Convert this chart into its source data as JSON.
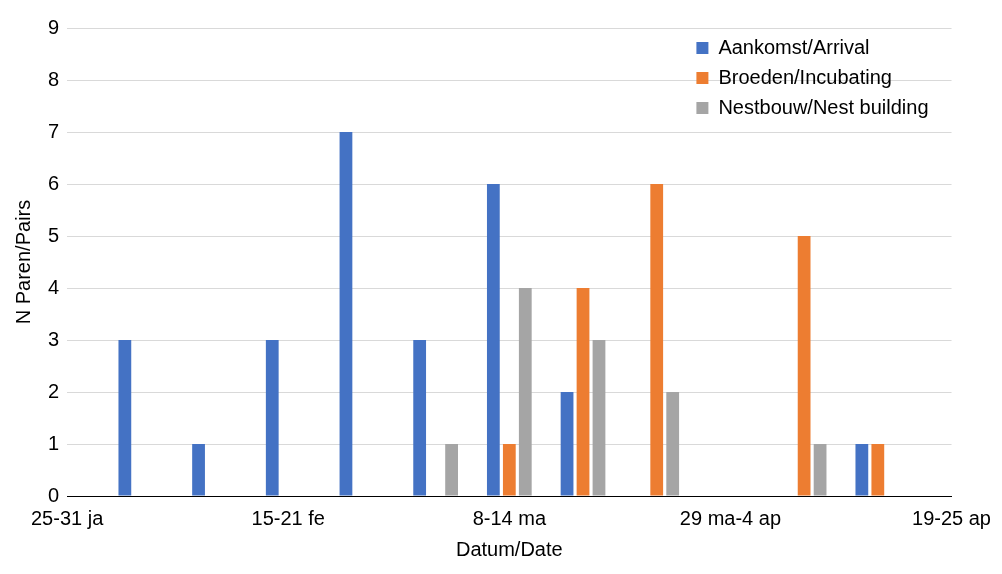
{
  "chart_data": {
    "type": "bar",
    "xlabel": "Datum/Date",
    "ylabel": "N Paren/Pairs",
    "categories": [
      "25-31 ja",
      null,
      null,
      "15-21 fe",
      null,
      null,
      "8-14 ma",
      null,
      null,
      "29 ma-4 ap",
      null,
      null,
      "19-25 ap"
    ],
    "series": [
      {
        "name": "Aankomst/Arrival",
        "color": "#4472c4",
        "values": [
          0,
          3,
          1,
          3,
          7,
          3,
          6,
          2,
          0,
          0,
          0,
          1,
          0
        ]
      },
      {
        "name": "Broeden/Incubating",
        "color": "#ed7d31",
        "values": [
          0,
          0,
          0,
          0,
          0,
          0,
          1,
          4,
          6,
          0,
          5,
          1,
          0
        ]
      },
      {
        "name": "Nestbouw/Nest building",
        "color": "#a5a5a5",
        "values": [
          0,
          0,
          0,
          0,
          0,
          1,
          4,
          3,
          2,
          0,
          1,
          0,
          0
        ]
      }
    ],
    "ylim": [
      0,
      9
    ],
    "yticks": [
      0,
      1,
      2,
      3,
      4,
      5,
      6,
      7,
      8,
      9
    ],
    "grid": "y",
    "legend": "top right"
  }
}
